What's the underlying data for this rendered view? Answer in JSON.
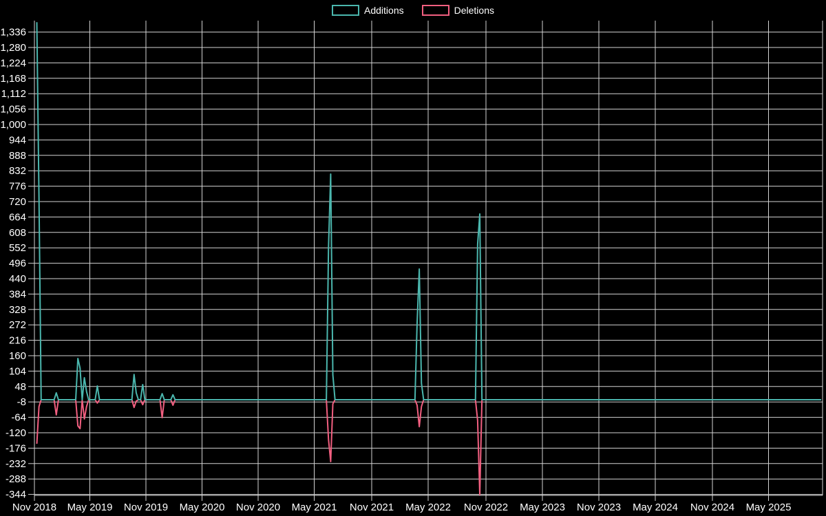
{
  "legend": {
    "items": [
      {
        "label": "Additions",
        "color": "#4bb7ae"
      },
      {
        "label": "Deletions",
        "color": "#f25f80"
      }
    ]
  },
  "colors": {
    "background": "#000000",
    "grid": "#d4d4d4",
    "text": "#ffffff",
    "additions": "#4bb7ae",
    "deletions": "#f25f80"
  },
  "chart_data": {
    "type": "line",
    "title": "",
    "grid": true,
    "legend_position": "top",
    "x_axis": {
      "tick_labels": [
        "Nov 2018",
        "May 2019",
        "Nov 2019",
        "May 2020",
        "Nov 2020",
        "May 2021",
        "Nov 2021",
        "May 2022",
        "Nov 2022",
        "May 2023",
        "Nov 2023",
        "May 2024",
        "Nov 2024",
        "May 2025"
      ]
    },
    "y_axis": {
      "min": -344,
      "max": 1336,
      "step": 56,
      "tick_labels": [
        "1,336",
        "1,280",
        "1,224",
        "1,168",
        "1,112",
        "1,056",
        "1,000",
        "944",
        "888",
        "832",
        "776",
        "720",
        "664",
        "608",
        "552",
        "496",
        "440",
        "384",
        "328",
        "272",
        "216",
        "160",
        "104",
        "48",
        "-8",
        "-64",
        "-120",
        "-176",
        "-232",
        "-288",
        "-344"
      ]
    },
    "series": [
      {
        "name": "Additions",
        "color": "#4bb7ae"
      },
      {
        "name": "Deletions",
        "color": "#f25f80"
      }
    ],
    "weeks_total": 364,
    "baseline_value": 0,
    "nonzero_points": [
      {
        "week": 0,
        "date": "2018-11",
        "additions": 1372,
        "deletions": -160
      },
      {
        "week": 1,
        "date": "2018-11",
        "additions": 735,
        "deletions": -25
      },
      {
        "week": 9,
        "date": "2019-01",
        "additions": 25,
        "deletions": -55
      },
      {
        "week": 19,
        "date": "2019-03",
        "additions": 150,
        "deletions": -95
      },
      {
        "week": 20,
        "date": "2019-03",
        "additions": 115,
        "deletions": -105
      },
      {
        "week": 22,
        "date": "2019-04",
        "additions": 80,
        "deletions": -70
      },
      {
        "week": 23,
        "date": "2019-04",
        "additions": 30,
        "deletions": -25
      },
      {
        "week": 28,
        "date": "2019-05",
        "additions": 50,
        "deletions": -12
      },
      {
        "week": 45,
        "date": "2019-09",
        "additions": 92,
        "deletions": -28
      },
      {
        "week": 46,
        "date": "2019-09",
        "additions": 25,
        "deletions": -5
      },
      {
        "week": 49,
        "date": "2019-10",
        "additions": 55,
        "deletions": -18
      },
      {
        "week": 58,
        "date": "2019-12",
        "additions": 22,
        "deletions": -65
      },
      {
        "week": 63,
        "date": "2020-01",
        "additions": 18,
        "deletions": -20
      },
      {
        "week": 135,
        "date": "2021-06",
        "additions": 555,
        "deletions": -145
      },
      {
        "week": 136,
        "date": "2021-06",
        "additions": 820,
        "deletions": -225
      },
      {
        "week": 137,
        "date": "2021-06",
        "additions": 90,
        "deletions": -15
      },
      {
        "week": 176,
        "date": "2022-03",
        "additions": 280,
        "deletions": -20
      },
      {
        "week": 177,
        "date": "2022-04",
        "additions": 475,
        "deletions": -98
      },
      {
        "week": 178,
        "date": "2022-04",
        "additions": 60,
        "deletions": -25
      },
      {
        "week": 204,
        "date": "2022-10",
        "additions": 565,
        "deletions": -75
      },
      {
        "week": 205,
        "date": "2022-10",
        "additions": 675,
        "deletions": -345
      }
    ]
  }
}
